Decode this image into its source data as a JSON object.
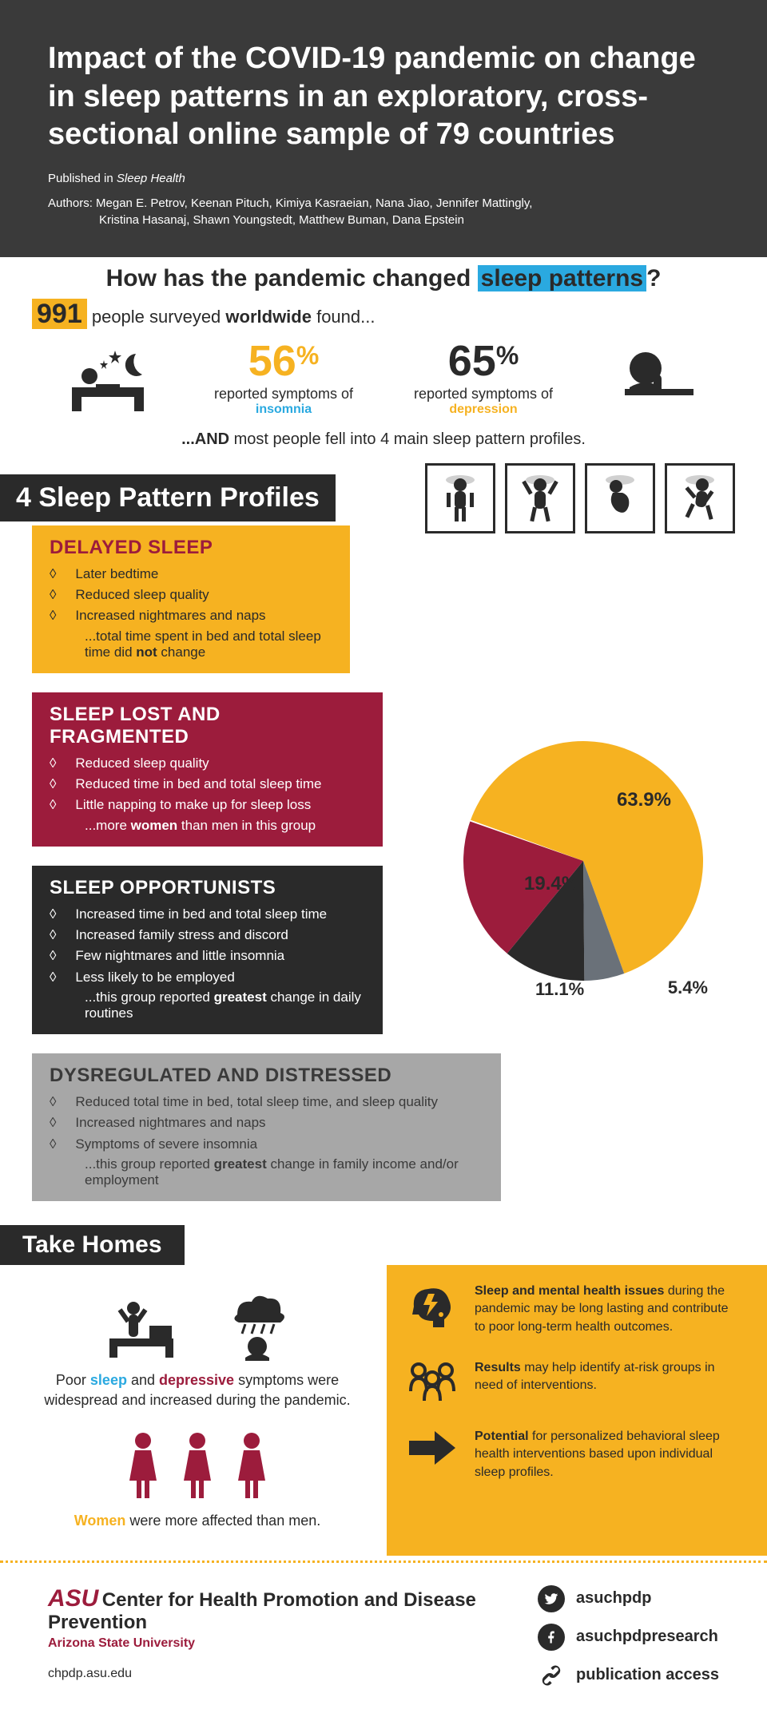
{
  "header": {
    "title": "Impact of the COVID-19 pandemic on change in sleep patterns in an exploratory, cross-sectional online sample of 79 countries",
    "published_prefix": "Published in ",
    "published_in": "Sleep Health",
    "authors_prefix": "Authors: ",
    "authors_line1": "Megan E. Petrov, Keenan Pituch, Kimiya Kasraeian, Nana Jiao, Jennifer Mattingly,",
    "authors_line2": "Kristina Hasanaj, Shawn Youngstedt, Matthew Buman, Dana Epstein"
  },
  "intro": {
    "question_a": "How has the pandemic changed ",
    "question_hl": "sleep patterns",
    "question_b": "?",
    "count": "991",
    "count_text_a": " people surveyed ",
    "count_bold": "worldwide",
    "count_text_b": " found...",
    "stat1_pct": "56",
    "stat1_pct_sym": "%",
    "stat1_lbl": "reported symptoms of",
    "stat1_kw": "insomnia",
    "stat2_pct": "65",
    "stat2_pct_sym": "%",
    "stat2_lbl": "reported symptoms of",
    "stat2_kw": "depression",
    "foot_a": "...AND",
    "foot_b": " most people fell into 4 main sleep pattern profiles.",
    "colors": {
      "highlight_bg": "#2aa9e0",
      "count_bg": "#f6b221",
      "teal": "#2aa9e0",
      "gold": "#f6b221"
    }
  },
  "profiles_banner": "4 Sleep Pattern Profiles",
  "profiles": {
    "delayed": {
      "title": "DELAYED SLEEP",
      "items": [
        "Later bedtime",
        "Reduced sleep quality",
        "Increased nightmares and naps"
      ],
      "note_a": "...total time spent in bed and total sleep time did ",
      "note_bold": "not",
      "note_b": " change",
      "bg": "#f6b221",
      "title_color": "#9c1c3c"
    },
    "lost": {
      "title": "SLEEP LOST AND FRAGMENTED",
      "items": [
        "Reduced sleep quality",
        "Reduced time in bed and total sleep time",
        "Little napping to make up for sleep loss"
      ],
      "note_a": "...more ",
      "note_bold": "women",
      "note_b": " than men in this group",
      "bg": "#9c1c3c"
    },
    "opp": {
      "title": "SLEEP OPPORTUNISTS",
      "items": [
        "Increased time in bed and total sleep time",
        "Increased family stress and discord",
        "Few nightmares and little insomnia",
        "Less likely to be employed"
      ],
      "note_a": "...this group reported ",
      "note_bold": "greatest",
      "note_b": " change in daily routines",
      "bg": "#2a2a2a"
    },
    "dys": {
      "title": "DYSREGULATED AND DISTRESSED",
      "items": [
        "Reduced total time in bed, total sleep time, and sleep quality",
        "Increased nightmares and naps",
        "Symptoms of severe insomnia"
      ],
      "note_a": "...this group reported ",
      "note_bold": "greatest",
      "note_b": " change in family income and/or employment",
      "bg": "#a7a7a7"
    }
  },
  "pie": {
    "type": "pie",
    "slices": [
      {
        "label": "63.9%",
        "value": 63.9,
        "color": "#f6b221"
      },
      {
        "label": "5.4%",
        "value": 5.4,
        "color": "#6a7179"
      },
      {
        "label": "11.1%",
        "value": 11.1,
        "color": "#2a2a2a"
      },
      {
        "label": "19.4%",
        "value": 19.4,
        "color": "#9c1c3c"
      }
    ],
    "label_fontsize": 24,
    "radius": 150
  },
  "take_banner": "Take Homes",
  "take": {
    "left": {
      "p1_a": "Poor ",
      "p1_sleep": "sleep",
      "p1_b": " and ",
      "p1_dep": "depressive",
      "p1_c": " symptoms were widespread and increased during the pandemic.",
      "p2_a": "",
      "p2_women": "Women",
      "p2_b": " were more affected than men."
    },
    "right": {
      "i1_bold": "Sleep and mental health issues",
      "i1_rest": " during the pandemic may be long lasting and contribute to poor long-term health outcomes.",
      "i2_bold": "Results",
      "i2_rest": " may help identify at-risk groups in need of interventions.",
      "i3_bold": "Potential",
      "i3_rest": " for personalized behavioral sleep health interventions based upon individual sleep profiles."
    }
  },
  "footer": {
    "asu": "ASU",
    "center": "Center for Health Promotion and Disease Prevention",
    "univ": "Arizona State University",
    "url": "chpdp.asu.edu",
    "tw": "asuchpdp",
    "fb": "asuchpdpresearch",
    "link": "publication access"
  },
  "palette": {
    "dark": "#3a3a3a",
    "darker": "#2a2a2a",
    "gold": "#f6b221",
    "maroon": "#9c1c3c",
    "grey": "#a7a7a7",
    "slate": "#6a7179",
    "teal": "#2aa9e0",
    "white": "#ffffff"
  }
}
